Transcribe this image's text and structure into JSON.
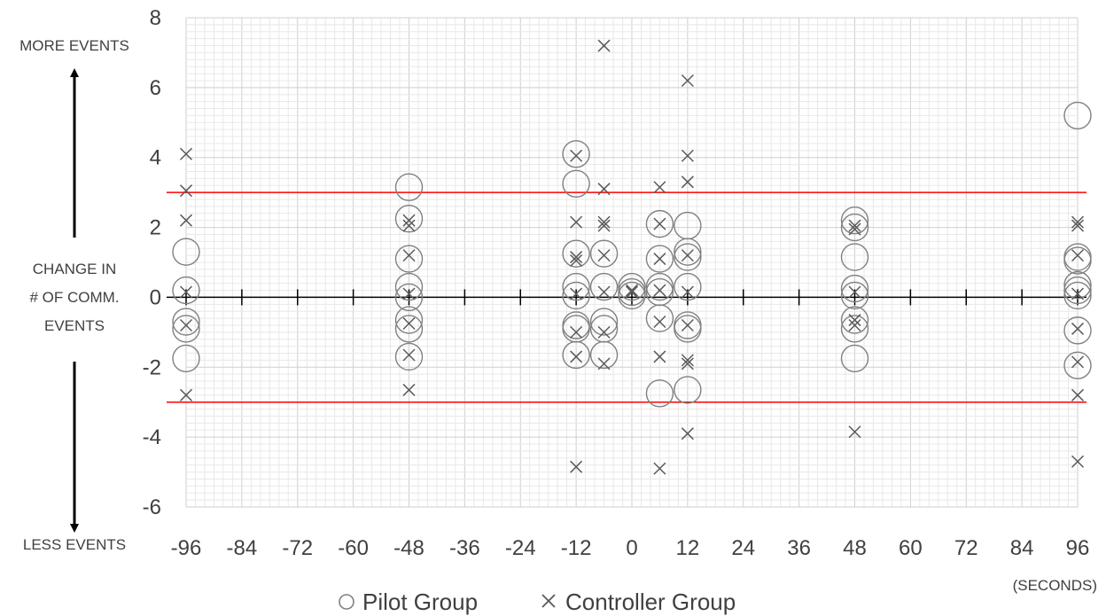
{
  "chart_data": {
    "type": "scatter",
    "xlim": [
      -96,
      96
    ],
    "ylim": [
      -6,
      8
    ],
    "x_ticks": [
      -96,
      -84,
      -72,
      -60,
      -48,
      -36,
      -24,
      -12,
      0,
      12,
      24,
      36,
      48,
      60,
      72,
      84,
      96
    ],
    "y_ticks": [
      -6,
      -4,
      -2,
      0,
      2,
      4,
      6,
      8
    ],
    "x_unit_label": "(SECONDS)",
    "y_label": {
      "line1": "CHANGE IN",
      "line2": "# OF COMM.",
      "line3": "EVENTS"
    },
    "top_annotation": "MORE EVENTS",
    "bottom_annotation": "LESS EVENTS",
    "grid": true,
    "threshold_lines": {
      "values": [
        3,
        -3
      ],
      "color": "#ff0000"
    },
    "legend_placement": "bottom-center",
    "series": [
      {
        "name": "Pilot Group",
        "marker": "circle",
        "marker_symbol": "○",
        "color": "#808080",
        "points": [
          [
            -96,
            1.3
          ],
          [
            -96,
            0.2
          ],
          [
            -96,
            -0.7
          ],
          [
            -96,
            -0.9
          ],
          [
            -96,
            -1.75
          ],
          [
            -48,
            3.15
          ],
          [
            -48,
            2.25
          ],
          [
            -48,
            1.1
          ],
          [
            -48,
            0.3
          ],
          [
            -48,
            0.0
          ],
          [
            -48,
            -0.65
          ],
          [
            -48,
            -0.9
          ],
          [
            -48,
            -1.7
          ],
          [
            -12,
            4.1
          ],
          [
            -12,
            3.25
          ],
          [
            -12,
            1.25
          ],
          [
            -12,
            0.3
          ],
          [
            -12,
            0.05
          ],
          [
            -12,
            -0.8
          ],
          [
            -12,
            -0.9
          ],
          [
            -12,
            -1.65
          ],
          [
            -6,
            1.25
          ],
          [
            -6,
            0.3
          ],
          [
            -6,
            -0.7
          ],
          [
            -6,
            -0.9
          ],
          [
            -6,
            -1.65
          ],
          [
            0,
            0.3
          ],
          [
            0,
            0.15
          ],
          [
            0,
            0.05
          ],
          [
            6,
            2.1
          ],
          [
            6,
            1.1
          ],
          [
            6,
            0.3
          ],
          [
            6,
            0.15
          ],
          [
            6,
            -0.6
          ],
          [
            6,
            -2.75
          ],
          [
            12,
            2.05
          ],
          [
            12,
            1.3
          ],
          [
            12,
            1.15
          ],
          [
            12,
            0.3
          ],
          [
            12,
            -0.8
          ],
          [
            12,
            -0.9
          ],
          [
            12,
            -2.65
          ],
          [
            48,
            2.2
          ],
          [
            48,
            2.0
          ],
          [
            48,
            1.15
          ],
          [
            48,
            0.25
          ],
          [
            48,
            0.05
          ],
          [
            48,
            -0.65
          ],
          [
            48,
            -0.9
          ],
          [
            48,
            -1.75
          ],
          [
            96,
            5.2
          ],
          [
            96,
            1.15
          ],
          [
            96,
            1.05
          ],
          [
            96,
            0.35
          ],
          [
            96,
            0.2
          ],
          [
            96,
            0.05
          ],
          [
            96,
            -0.95
          ],
          [
            96,
            -1.95
          ]
        ]
      },
      {
        "name": "Controller Group",
        "marker": "x",
        "marker_symbol": "×",
        "color": "#595959",
        "points": [
          [
            -96,
            4.1
          ],
          [
            -96,
            3.05
          ],
          [
            -96,
            2.2
          ],
          [
            -96,
            0.15
          ],
          [
            -96,
            -0.8
          ],
          [
            -96,
            -2.8
          ],
          [
            -48,
            2.2
          ],
          [
            -48,
            2.05
          ],
          [
            -48,
            1.2
          ],
          [
            -48,
            0.1
          ],
          [
            -48,
            -0.75
          ],
          [
            -48,
            -1.65
          ],
          [
            -48,
            -2.65
          ],
          [
            -12,
            4.05
          ],
          [
            -12,
            2.15
          ],
          [
            -12,
            1.15
          ],
          [
            -12,
            1.05
          ],
          [
            -12,
            0.1
          ],
          [
            -12,
            -1.0
          ],
          [
            -12,
            -1.7
          ],
          [
            -12,
            -4.85
          ],
          [
            -6,
            7.2
          ],
          [
            -6,
            3.1
          ],
          [
            -6,
            2.15
          ],
          [
            -6,
            2.05
          ],
          [
            -6,
            1.2
          ],
          [
            -6,
            0.15
          ],
          [
            -6,
            -1.0
          ],
          [
            -6,
            -1.9
          ],
          [
            0,
            0.2
          ],
          [
            0,
            0.15
          ],
          [
            6,
            3.15
          ],
          [
            6,
            2.1
          ],
          [
            6,
            1.1
          ],
          [
            6,
            0.2
          ],
          [
            6,
            -0.7
          ],
          [
            6,
            -1.7
          ],
          [
            6,
            -4.9
          ],
          [
            12,
            6.2
          ],
          [
            12,
            4.05
          ],
          [
            12,
            3.3
          ],
          [
            12,
            1.2
          ],
          [
            12,
            0.15
          ],
          [
            12,
            -0.8
          ],
          [
            12,
            -1.8
          ],
          [
            12,
            -1.9
          ],
          [
            12,
            -3.9
          ],
          [
            48,
            2.05
          ],
          [
            48,
            1.95
          ],
          [
            48,
            0.15
          ],
          [
            48,
            -0.65
          ],
          [
            48,
            -0.8
          ],
          [
            48,
            -3.85
          ],
          [
            96,
            2.15
          ],
          [
            96,
            2.05
          ],
          [
            96,
            1.2
          ],
          [
            96,
            0.1
          ],
          [
            96,
            -0.9
          ],
          [
            96,
            -1.85
          ],
          [
            96,
            -2.8
          ],
          [
            96,
            -4.7
          ]
        ]
      }
    ]
  }
}
